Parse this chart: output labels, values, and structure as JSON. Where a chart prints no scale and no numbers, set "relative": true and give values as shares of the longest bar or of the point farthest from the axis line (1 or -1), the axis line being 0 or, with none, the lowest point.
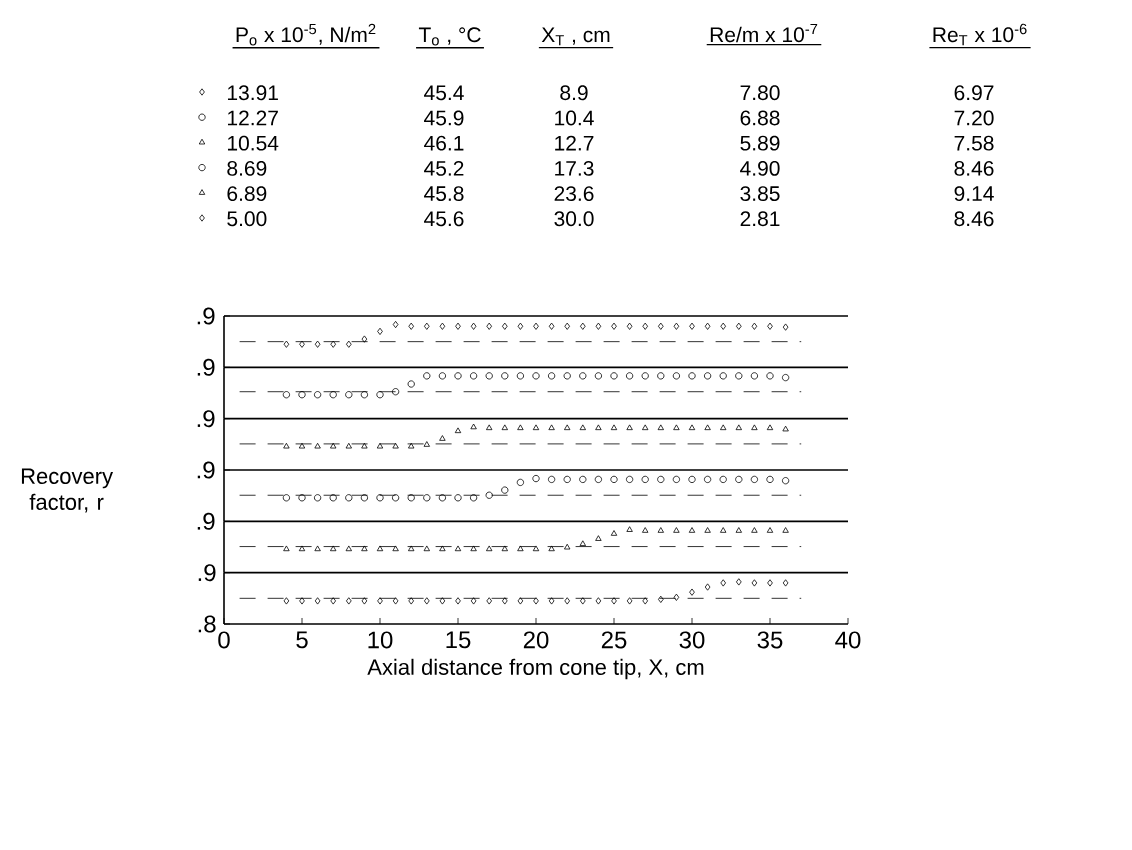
{
  "chart_data": [
    {
      "type": "scatter",
      "relative": true,
      "xlim": [
        0,
        40
      ],
      "legend": "top",
      "x": [
        4,
        5,
        6,
        7,
        8,
        9,
        10,
        11,
        12,
        13,
        14,
        15,
        16,
        17,
        18,
        19,
        20,
        21,
        22,
        23,
        24,
        25,
        26,
        27,
        28,
        29,
        30,
        31,
        32,
        33,
        34,
        35,
        36
      ],
      "series": [
        {
          "name": "13.91",
          "color": "#000000",
          "marker": "diamond",
          "values": [
            0.54,
            0.54,
            0.54,
            0.54,
            0.54,
            0.66,
            0.84,
            1,
            0.96,
            0.96,
            0.96,
            0.96,
            0.96,
            0.96,
            0.96,
            0.96,
            0.96,
            0.96,
            0.96,
            0.96,
            0.96,
            0.96,
            0.96,
            0.96,
            0.96,
            0.96,
            0.96,
            0.96,
            0.96,
            0.96,
            0.96,
            0.96,
            0.94
          ]
        }
      ],
      "ref_lines": [
        {
          "axis": "y",
          "value": 0.6,
          "line_style": "dashed"
        }
      ],
      "annotations": [
        ".9",
        "P$_{o}$ x 10$^{-5}$, N/m$^{2}$",
        "T$_{o}$ , °C",
        "X$_{T}$ , cm",
        "Re/m x 10$^{-7}$",
        "Re$_{T}$ x 10$^{-6}$",
        "45.4",
        "8.9",
        "7.80",
        "6.97"
      ]
    },
    {
      "type": "scatter",
      "relative": true,
      "xlim": [
        0,
        40
      ],
      "legend": "top",
      "x": [
        4,
        5,
        6,
        7,
        8,
        9,
        10,
        11,
        12,
        13,
        14,
        15,
        16,
        17,
        18,
        19,
        20,
        21,
        22,
        23,
        24,
        25,
        26,
        27,
        28,
        29,
        30,
        31,
        32,
        33,
        34,
        35,
        36
      ],
      "series": [
        {
          "name": "12.27",
          "color": "#000000",
          "marker": "circle",
          "values": [
            0.56,
            0.56,
            0.56,
            0.56,
            0.56,
            0.56,
            0.56,
            0.63,
            0.81,
            1,
            1,
            1,
            1,
            1,
            1,
            1,
            1,
            1,
            1,
            1,
            1,
            1,
            1,
            1,
            1,
            1,
            1,
            1,
            1,
            1,
            1,
            1,
            0.96
          ]
        }
      ],
      "ref_lines": [
        {
          "axis": "y",
          "value": 0.63,
          "line_style": "dashed"
        }
      ],
      "annotations": [
        ".9",
        "45.9",
        "10.4",
        "6.88",
        "7.20"
      ]
    },
    {
      "type": "scatter",
      "relative": true,
      "xlim": [
        0,
        40
      ],
      "legend": "top",
      "x": [
        4,
        5,
        6,
        7,
        8,
        9,
        10,
        11,
        12,
        13,
        14,
        15,
        16,
        17,
        18,
        19,
        20,
        21,
        22,
        23,
        24,
        25,
        26,
        27,
        28,
        29,
        30,
        31,
        32,
        33,
        34,
        35,
        36
      ],
      "series": [
        {
          "name": "10.54",
          "color": "#000000",
          "marker": "triangle",
          "values": [
            0.55,
            0.55,
            0.55,
            0.55,
            0.55,
            0.55,
            0.55,
            0.55,
            0.55,
            0.59,
            0.73,
            0.91,
            1,
            0.98,
            0.98,
            0.98,
            0.98,
            0.98,
            0.98,
            0.98,
            0.98,
            0.98,
            0.98,
            0.98,
            0.98,
            0.98,
            0.98,
            0.98,
            0.98,
            0.98,
            0.98,
            0.98,
            0.95
          ]
        }
      ],
      "ref_lines": [
        {
          "axis": "y",
          "value": 0.61,
          "line_style": "dashed"
        }
      ],
      "annotations": [
        ".9",
        "46.1",
        "12.7",
        "5.89",
        "7.58"
      ]
    },
    {
      "type": "scatter",
      "relative": true,
      "ylabel": "Recovery factor, r",
      "xlim": [
        0,
        40
      ],
      "legend": "top",
      "x": [
        4,
        5,
        6,
        7,
        8,
        9,
        10,
        11,
        12,
        13,
        14,
        15,
        16,
        17,
        18,
        19,
        20,
        21,
        22,
        23,
        24,
        25,
        26,
        27,
        28,
        29,
        30,
        31,
        32,
        33,
        34,
        35,
        36
      ],
      "series": [
        {
          "name": "8.69",
          "color": "#000000",
          "marker": "circle",
          "values": [
            0.55,
            0.55,
            0.55,
            0.55,
            0.55,
            0.55,
            0.55,
            0.55,
            0.55,
            0.55,
            0.55,
            0.55,
            0.55,
            0.61,
            0.73,
            0.91,
            1,
            0.98,
            0.98,
            0.98,
            0.98,
            0.98,
            0.98,
            0.98,
            0.98,
            0.98,
            0.98,
            0.98,
            0.98,
            0.98,
            0.98,
            0.98,
            0.95
          ]
        }
      ],
      "ref_lines": [
        {
          "axis": "y",
          "value": 0.61,
          "line_style": "dashed"
        }
      ],
      "annotations": [
        ".9",
        "45.2",
        "17.3",
        "4.90",
        "8.46"
      ]
    },
    {
      "type": "scatter",
      "relative": true,
      "xlim": [
        0,
        40
      ],
      "legend": "top",
      "x": [
        4,
        5,
        6,
        7,
        8,
        9,
        10,
        11,
        12,
        13,
        14,
        15,
        16,
        17,
        18,
        19,
        20,
        21,
        22,
        23,
        24,
        25,
        26,
        27,
        28,
        29,
        30,
        31,
        32,
        33,
        34,
        35,
        36
      ],
      "series": [
        {
          "name": "6.89",
          "color": "#000000",
          "marker": "triangle",
          "values": [
            0.55,
            0.55,
            0.55,
            0.55,
            0.55,
            0.55,
            0.55,
            0.55,
            0.55,
            0.55,
            0.55,
            0.55,
            0.55,
            0.55,
            0.55,
            0.55,
            0.55,
            0.55,
            0.59,
            0.67,
            0.79,
            0.91,
            1,
            0.98,
            0.98,
            0.98,
            0.98,
            0.98,
            0.98,
            0.98,
            0.98,
            0.98,
            0.98
          ]
        }
      ],
      "ref_lines": [
        {
          "axis": "y",
          "value": 0.61,
          "line_style": "dashed"
        }
      ],
      "annotations": [
        ".9",
        "45.8",
        "23.6",
        "3.85",
        "9.14"
      ]
    },
    {
      "type": "scatter",
      "xlabel": "Axial distance from cone tip, X, cm",
      "xlim": [
        0,
        40
      ],
      "ylim": [
        0.8,
        0.9
      ],
      "xticks": [
        0,
        5,
        10,
        15,
        20,
        25,
        30,
        35,
        40
      ],
      "yticks": [
        {
          "value": 0.8,
          "label": ".8"
        },
        {
          "value": 0.9,
          "label": ".9"
        }
      ],
      "legend": "top",
      "x": [
        4,
        5,
        6,
        7,
        8,
        9,
        10,
        11,
        12,
        13,
        14,
        15,
        16,
        17,
        18,
        19,
        20,
        21,
        22,
        23,
        24,
        25,
        26,
        27,
        28,
        29,
        30,
        31,
        32,
        33,
        34,
        35,
        36
      ],
      "series": [
        {
          "name": "5.00",
          "color": "#000000",
          "marker": "diamond",
          "values": [
            0.845,
            0.845,
            0.845,
            0.845,
            0.845,
            0.845,
            0.845,
            0.845,
            0.845,
            0.845,
            0.845,
            0.845,
            0.845,
            0.845,
            0.845,
            0.845,
            0.845,
            0.845,
            0.845,
            0.845,
            0.845,
            0.845,
            0.845,
            0.845,
            0.848,
            0.852,
            0.862,
            0.872,
            0.88,
            0.882,
            0.88,
            0.88,
            0.88
          ]
        }
      ],
      "ref_lines": [
        {
          "axis": "y",
          "value": 0.85,
          "line_style": "dashed"
        }
      ],
      "annotations": [
        "45.6",
        "30.0",
        "2.81",
        "8.46"
      ]
    }
  ]
}
